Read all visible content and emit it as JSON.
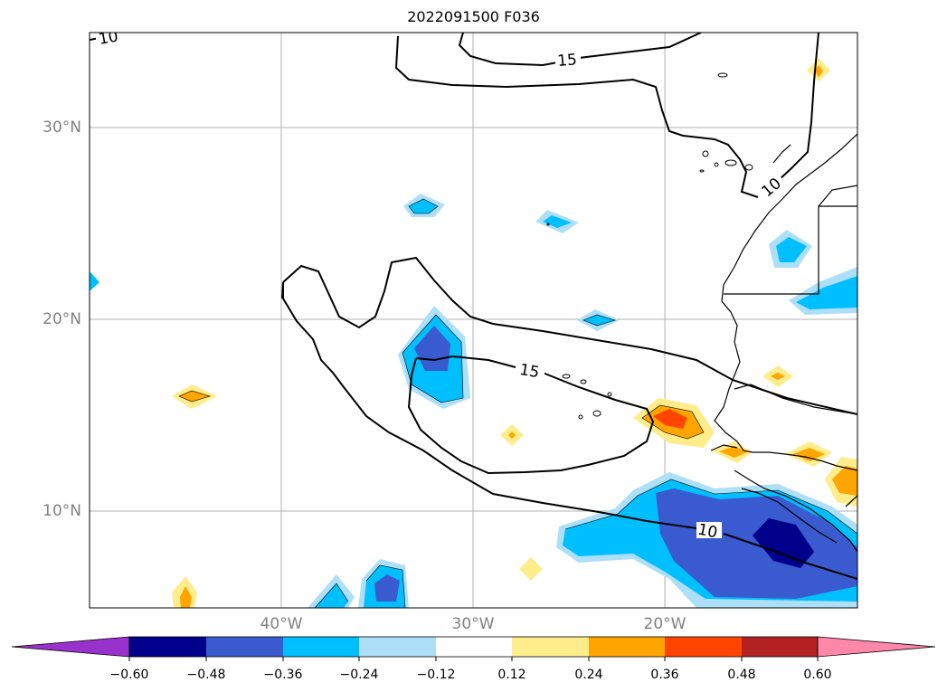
{
  "title": "2022091500 F036",
  "map": {
    "lat_labels": [
      "30°N",
      "20°N",
      "10°N"
    ],
    "lon_labels": [
      "40°W",
      "30°W",
      "20°W"
    ],
    "contour_labels": [
      "10",
      "15",
      "15",
      "10",
      "10"
    ],
    "contour_levels": [
      10,
      15
    ],
    "extent": {
      "lon": [
        -50,
        -10
      ],
      "lat": [
        5,
        35
      ]
    }
  },
  "colorbar": {
    "ticks": [
      "−0.60",
      "−0.48",
      "−0.36",
      "−0.24",
      "−0.12",
      "0.12",
      "0.24",
      "0.36",
      "0.48",
      "0.60"
    ],
    "colors": [
      "#9932CC",
      "#00008B",
      "#3A5BD0",
      "#00BFFF",
      "#ADDFF8",
      "#FFFFFF",
      "#FFEC8B",
      "#FFA500",
      "#FF4500",
      "#B22222",
      "#FF88AA"
    ]
  }
}
